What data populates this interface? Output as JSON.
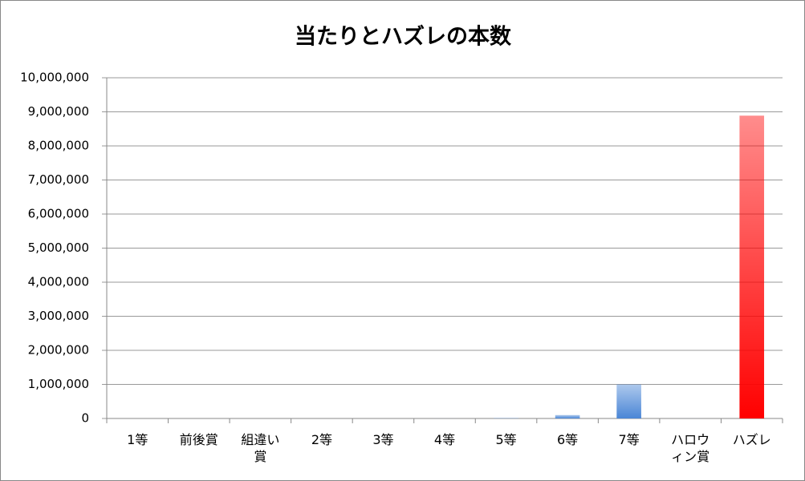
{
  "chart_data": {
    "type": "bar",
    "title": "当たりとハズレの本数",
    "categories": [
      "1等",
      "前後賞",
      "組違い賞",
      "2等",
      "3等",
      "4等",
      "5等",
      "6等",
      "7等",
      "ハロウィン賞",
      "ハズレ"
    ],
    "values": [
      1,
      2,
      99,
      10,
      100,
      1000,
      10000,
      100000,
      1000000,
      1000,
      8887788
    ],
    "colors": [
      "#4a86d6",
      "#4a86d6",
      "#4a86d6",
      "#4a86d6",
      "#4a86d6",
      "#4a86d6",
      "#4a86d6",
      "#4a86d6",
      "#4a86d6",
      "#4a86d6",
      "#ff0000"
    ],
    "ylim": [
      0,
      10000000
    ],
    "yticks": [
      0,
      {
        "value": 1000000,
        "label": "1,000,000"
      },
      {
        "value": 2000000,
        "label": "2,000,000"
      },
      {
        "value": 3000000,
        "label": "3,000,000"
      },
      {
        "value": 4000000,
        "label": "4,000,000"
      },
      {
        "value": 5000000,
        "label": "5,000,000"
      },
      {
        "value": 6000000,
        "label": "6,000,000"
      },
      {
        "value": 7000000,
        "label": "7,000,000"
      },
      {
        "value": 8000000,
        "label": "8,000,000"
      },
      {
        "value": 9000000,
        "label": "9,000,000"
      },
      {
        "value": 10000000,
        "label": "10,000,000"
      }
    ],
    "grid": true
  }
}
